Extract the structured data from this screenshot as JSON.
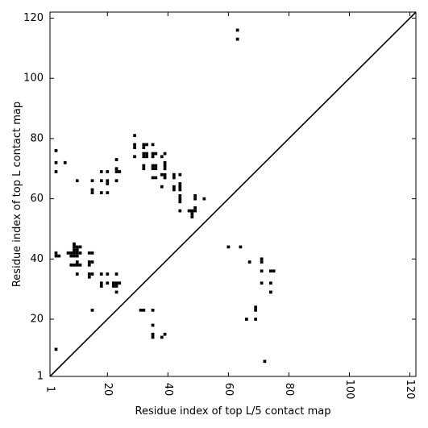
{
  "chart_data": {
    "type": "scatter",
    "title": "",
    "xlabel": "Residue index of top L/5 contact map",
    "ylabel": "Residue index of top L contact map",
    "xlim": [
      1,
      122
    ],
    "ylim": [
      1,
      122
    ],
    "x_ticks": [
      1,
      20,
      40,
      60,
      80,
      100,
      120
    ],
    "y_ticks": [
      1,
      20,
      40,
      60,
      80,
      100,
      120
    ],
    "x_tick_labels": [
      "1",
      "20",
      "40",
      "60",
      "80",
      "100",
      "120"
    ],
    "y_tick_labels": [
      "1",
      "20",
      "40",
      "60",
      "80",
      "100",
      "120"
    ],
    "x_tick_rotation": 90,
    "grid": false,
    "legend": "none",
    "diagonal": true,
    "marker": "square",
    "colors": {
      "points": "#000000",
      "diagonal": "#000000",
      "frame": "#000000"
    },
    "series": [
      {
        "points": [
          [
            63,
            116
          ],
          [
            63,
            113
          ],
          [
            3,
            76
          ],
          [
            3,
            72
          ],
          [
            3,
            69
          ],
          [
            6,
            72
          ],
          [
            10,
            66
          ],
          [
            15,
            66
          ],
          [
            15,
            63
          ],
          [
            15,
            62
          ],
          [
            18,
            69
          ],
          [
            18,
            66
          ],
          [
            18,
            62
          ],
          [
            20,
            69
          ],
          [
            20,
            66
          ],
          [
            20,
            65
          ],
          [
            20,
            62
          ],
          [
            23,
            73
          ],
          [
            23,
            70
          ],
          [
            23,
            69
          ],
          [
            24,
            69
          ],
          [
            23,
            66
          ],
          [
            29,
            81
          ],
          [
            29,
            78
          ],
          [
            29,
            77
          ],
          [
            29,
            74
          ],
          [
            32,
            78
          ],
          [
            32,
            77
          ],
          [
            33,
            78
          ],
          [
            32,
            75
          ],
          [
            32,
            74
          ],
          [
            33,
            75
          ],
          [
            33,
            74
          ],
          [
            32,
            71
          ],
          [
            32,
            70
          ],
          [
            35,
            78
          ],
          [
            35,
            75
          ],
          [
            35,
            74
          ],
          [
            36,
            75
          ],
          [
            35,
            71
          ],
          [
            35,
            70
          ],
          [
            36,
            71
          ],
          [
            36,
            70
          ],
          [
            35,
            67
          ],
          [
            36,
            67
          ],
          [
            39,
            75
          ],
          [
            38,
            74
          ],
          [
            39,
            72
          ],
          [
            39,
            71
          ],
          [
            39,
            70
          ],
          [
            38,
            68
          ],
          [
            39,
            68
          ],
          [
            39,
            67
          ],
          [
            38,
            64
          ],
          [
            42,
            68
          ],
          [
            42,
            67
          ],
          [
            44,
            68
          ],
          [
            42,
            64
          ],
          [
            42,
            63
          ],
          [
            44,
            65
          ],
          [
            44,
            64
          ],
          [
            44,
            63
          ],
          [
            44,
            61
          ],
          [
            44,
            60
          ],
          [
            44,
            59
          ],
          [
            44,
            56
          ],
          [
            47,
            56
          ],
          [
            48,
            56
          ],
          [
            48,
            55
          ],
          [
            48,
            54
          ],
          [
            49,
            57
          ],
          [
            49,
            56
          ],
          [
            49,
            61
          ],
          [
            49,
            60
          ],
          [
            52,
            60
          ],
          [
            3,
            42
          ],
          [
            3,
            41
          ],
          [
            4,
            41
          ],
          [
            7,
            42
          ],
          [
            8,
            42
          ],
          [
            8,
            41
          ],
          [
            8,
            38
          ],
          [
            9,
            45
          ],
          [
            9,
            44
          ],
          [
            9,
            43
          ],
          [
            9,
            42
          ],
          [
            9,
            41
          ],
          [
            9,
            38
          ],
          [
            10,
            44
          ],
          [
            10,
            43
          ],
          [
            10,
            42
          ],
          [
            10,
            41
          ],
          [
            10,
            39
          ],
          [
            10,
            38
          ],
          [
            10,
            35
          ],
          [
            11,
            44
          ],
          [
            11,
            42
          ],
          [
            11,
            38
          ],
          [
            14,
            42
          ],
          [
            14,
            39
          ],
          [
            14,
            38
          ],
          [
            14,
            35
          ],
          [
            14,
            34
          ],
          [
            15,
            42
          ],
          [
            15,
            39
          ],
          [
            15,
            35
          ],
          [
            15,
            23
          ],
          [
            18,
            35
          ],
          [
            18,
            32
          ],
          [
            18,
            31
          ],
          [
            20,
            35
          ],
          [
            20,
            32
          ],
          [
            22,
            32
          ],
          [
            22,
            31
          ],
          [
            23,
            35
          ],
          [
            23,
            32
          ],
          [
            23,
            31
          ],
          [
            23,
            29
          ],
          [
            24,
            32
          ],
          [
            31,
            23
          ],
          [
            32,
            23
          ],
          [
            35,
            23
          ],
          [
            35,
            18
          ],
          [
            35,
            15
          ],
          [
            35,
            14
          ],
          [
            38,
            14
          ],
          [
            39,
            15
          ],
          [
            60,
            44
          ],
          [
            64,
            44
          ],
          [
            67,
            39
          ],
          [
            66,
            20
          ],
          [
            69,
            24
          ],
          [
            69,
            23
          ],
          [
            69,
            20
          ],
          [
            71,
            40
          ],
          [
            71,
            39
          ],
          [
            71,
            36
          ],
          [
            71,
            32
          ],
          [
            74,
            36
          ],
          [
            75,
            36
          ],
          [
            74,
            32
          ],
          [
            74,
            29
          ],
          [
            72,
            6
          ],
          [
            3,
            10
          ]
        ]
      }
    ]
  }
}
